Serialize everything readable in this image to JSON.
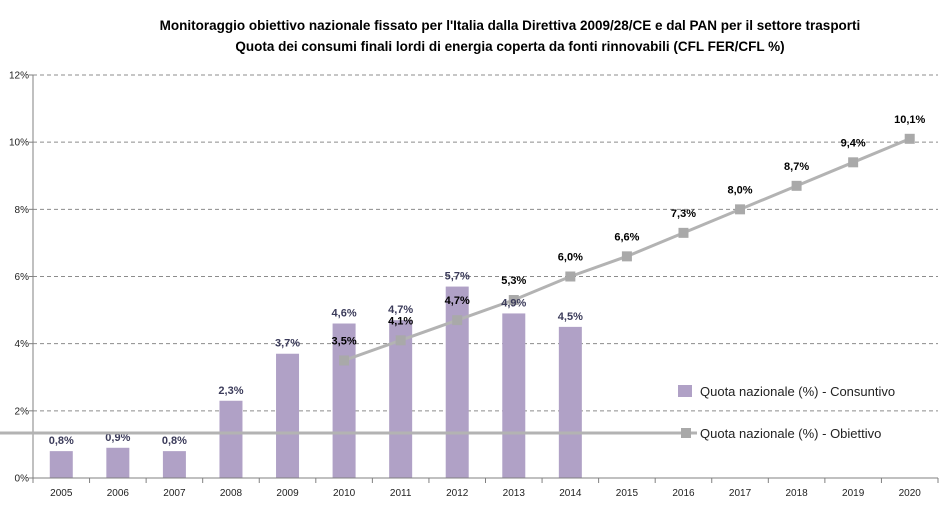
{
  "colors": {
    "bar": "#b0a1c6",
    "line": "#b3b3b3",
    "marker": "#a9a9a9",
    "grid": "#8c8c8c",
    "axis": "#808080"
  },
  "chart_data": {
    "type": "bar",
    "title": "Monitoraggio obiettivo nazionale  fissato per l'Italia dalla Direttiva 2009/28/CE  e dal PAN per il settore trasporti",
    "subtitle": "Quota dei consumi finali lordi di energia coperta da fonti rinnovabili (CFL FER/CFL %)",
    "categories": [
      "2005",
      "2006",
      "2007",
      "2008",
      "2009",
      "2010",
      "2011",
      "2012",
      "2013",
      "2014",
      "2015",
      "2016",
      "2017",
      "2018",
      "2019",
      "2020"
    ],
    "y_ticks": [
      "0%",
      "2%",
      "4%",
      "6%",
      "8%",
      "10%",
      "12%"
    ],
    "ylim": [
      0,
      12
    ],
    "grid": true,
    "legend_position": "right",
    "series": [
      {
        "name": "Quota nazionale (%) - Consuntivo",
        "type": "bar",
        "values": [
          0.8,
          0.9,
          0.8,
          2.3,
          3.7,
          4.6,
          4.7,
          5.7,
          4.9,
          4.5,
          null,
          null,
          null,
          null,
          null,
          null
        ],
        "labels": [
          "0,8%",
          "0,9%",
          "0,8%",
          "2,3%",
          "3,7%",
          "4,6%",
          "4,7%",
          "5,7%",
          "4,9%",
          "4,5%",
          "",
          "",
          "",
          "",
          "",
          ""
        ]
      },
      {
        "name": "Quota nazionale (%) - Obiettivo",
        "type": "line",
        "values": [
          null,
          null,
          null,
          null,
          null,
          3.5,
          4.1,
          4.7,
          5.3,
          6.0,
          6.6,
          7.3,
          8.0,
          8.7,
          9.4,
          10.1
        ],
        "labels": [
          "",
          "",
          "",
          "",
          "",
          "3,5%",
          "4,1%",
          "4,7%",
          "5,3%",
          "6,0%",
          "6,6%",
          "7,3%",
          "8,0%",
          "8,7%",
          "9,4%",
          "10,1%"
        ]
      }
    ]
  }
}
